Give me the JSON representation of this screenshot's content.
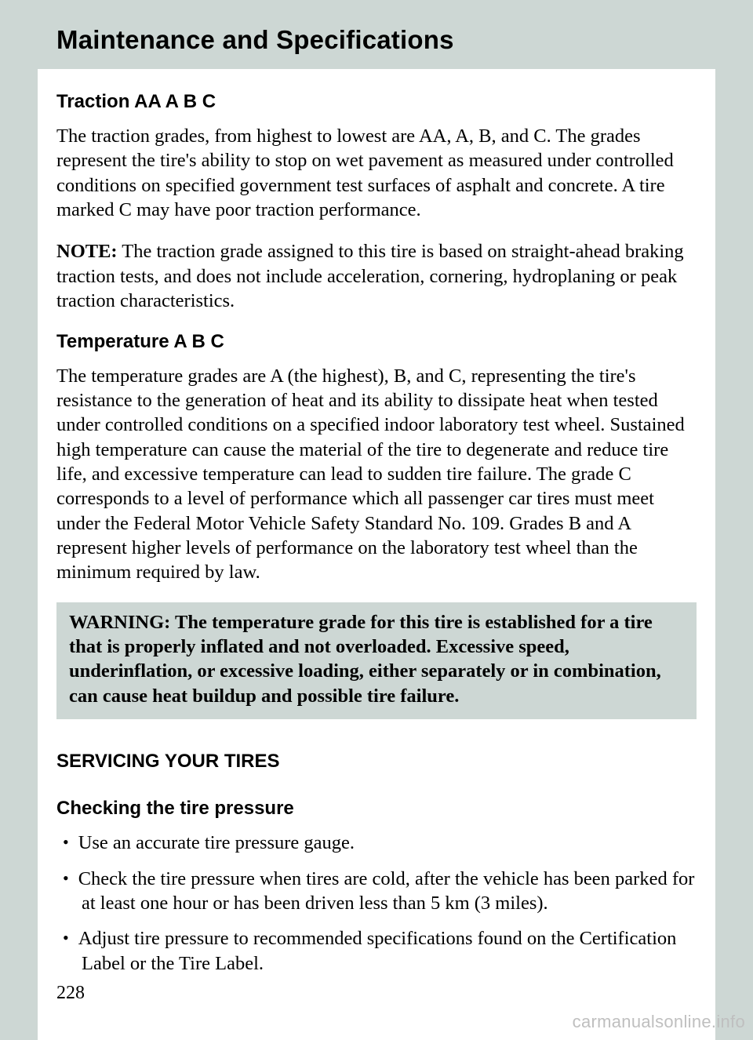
{
  "colors": {
    "page_bg": "#ffffff",
    "outer_bg": "#cdd7d4",
    "band_bg": "#cdd7d4",
    "warning_bg": "#cdd7d4",
    "text": "#000000",
    "watermark": "#bfbfbf"
  },
  "typography": {
    "header_family": "Arial",
    "header_size_pt": 25,
    "heading_family": "Arial",
    "heading_size_pt": 18,
    "body_family": "Times New Roman",
    "body_size_pt": 18,
    "line_height": 1.28
  },
  "header": {
    "title": "Maintenance and Specifications"
  },
  "sections": {
    "traction": {
      "heading": "Traction AA A B C",
      "para1": "The traction grades, from highest to lowest are AA, A, B, and C. The grades represent the tire's ability to stop on wet pavement as measured under controlled conditions on specified government test surfaces of asphalt and concrete. A tire marked C may have poor traction performance.",
      "note_label": "NOTE:",
      "note_body": " The traction grade assigned to this tire is based on straight-ahead braking traction tests, and does not include acceleration, cornering, hydroplaning or peak traction characteristics."
    },
    "temperature": {
      "heading": "Temperature A B C",
      "para1": "The temperature grades are A (the highest), B, and C, representing the tire's resistance to the generation of heat and its ability to dissipate heat when tested under controlled conditions on a specified indoor laboratory test wheel. Sustained high temperature can cause the material of the tire to degenerate and reduce tire life, and excessive temperature can lead to sudden tire failure. The grade C corresponds to a level of performance which all passenger car tires must meet under the Federal Motor Vehicle Safety Standard No. 109. Grades B and A represent higher levels of performance on the laboratory test wheel than the minimum required by law."
    },
    "warning": {
      "label": "WARNING:",
      "body": "  The temperature grade for this tire is established for a tire that is properly inflated and not overloaded. Excessive speed, underinflation, or excessive loading, either separately or in combination, can cause heat buildup and possible tire failure."
    },
    "servicing": {
      "heading": "SERVICING YOUR TIRES"
    },
    "checking": {
      "heading": "Checking the tire pressure",
      "bullets": [
        "Use an accurate tire pressure gauge.",
        "Check the tire pressure when tires are cold, after the vehicle has been parked for at least one hour or has been driven less than 5 km (3 miles).",
        "Adjust tire pressure to recommended specifications found on the Certification Label or the Tire Label."
      ]
    }
  },
  "page_number": "228",
  "watermark": "carmanualsonline.info"
}
